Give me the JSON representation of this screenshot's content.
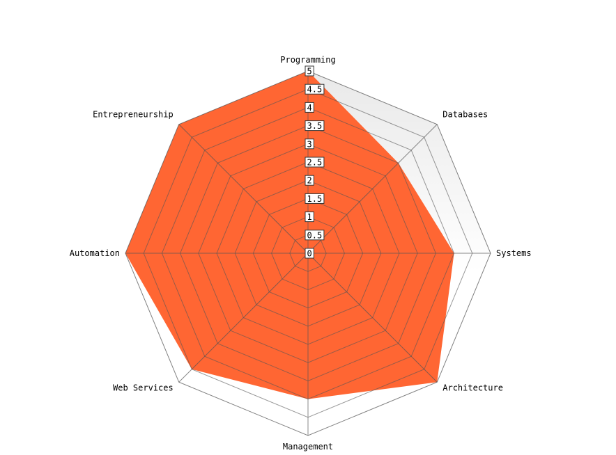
{
  "chart_data": {
    "type": "radar",
    "title": "",
    "axes": [
      "Programming",
      "Databases",
      "Systems",
      "Architecture",
      "Management",
      "Web Services",
      "Automation",
      "Entrepreneurship"
    ],
    "series": [
      {
        "values": [
          5,
          3.5,
          4,
          5,
          4,
          4.5,
          5,
          5
        ],
        "color": "#ff6633"
      }
    ],
    "rlim": [
      0,
      5
    ],
    "ticks": [
      "0",
      "0.5",
      "1",
      "1.5",
      "2",
      "2.5",
      "3",
      "3.5",
      "4",
      "4.5",
      "5"
    ],
    "grid": true
  }
}
